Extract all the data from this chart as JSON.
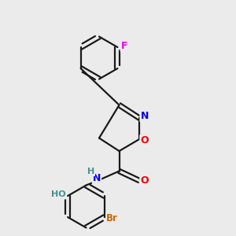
{
  "background_color": "#ebebeb",
  "bond_color": "#1a1a1a",
  "atom_colors": {
    "N": "#0000ee",
    "O": "#ee0000",
    "F": "#ee00ee",
    "Br": "#cc6600",
    "H_teal": "#4a9090",
    "C": "#1a1a1a"
  },
  "figsize": [
    3.0,
    3.0
  ],
  "dpi": 100
}
